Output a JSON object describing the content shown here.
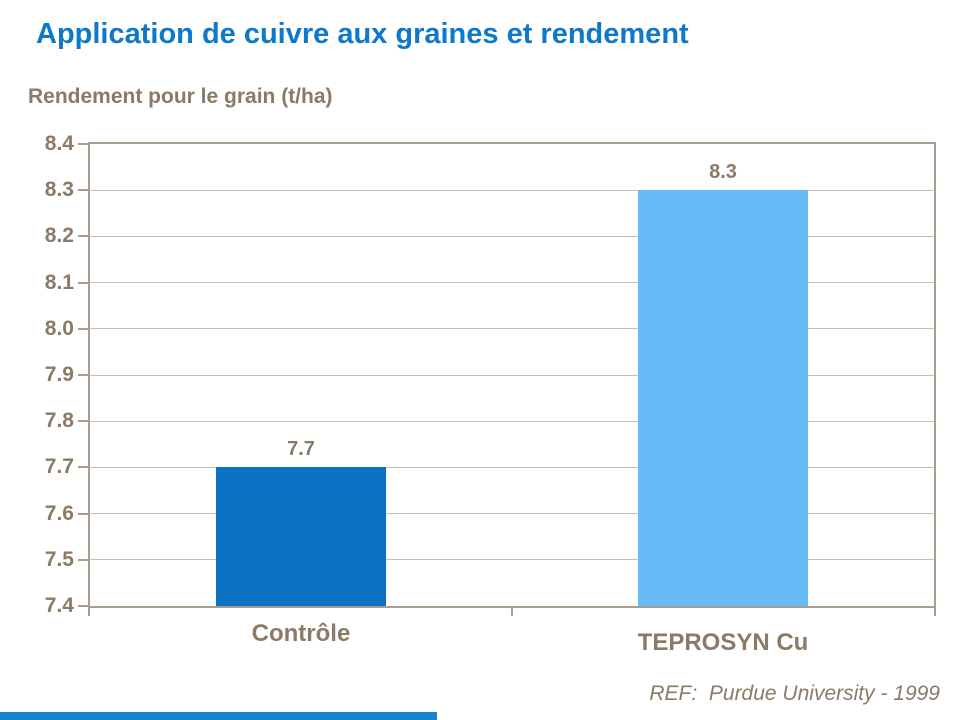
{
  "slide": {
    "title": "Application de cuivre aux graines et rendement",
    "y_axis_title": "Rendement pour le grain (t/ha)",
    "reference": "REF:  Purdue University - 1999"
  },
  "colors": {
    "title_blue": "#0E79C8",
    "text_brown": "#8A7A66",
    "bar_controle": "#0A72C4",
    "bar_teprosyn": "#67BCF8",
    "gridline": "#C9BFB2",
    "axis_border": "#A89D8F",
    "footer_strip": "#1583CE"
  },
  "chart_data": {
    "type": "bar",
    "title": "Application de cuivre aux graines et rendement",
    "xlabel": "",
    "ylabel": "Rendement pour le grain (t/ha)",
    "categories": [
      "Contrôle",
      "TEPROSYN Cu"
    ],
    "values": [
      7.7,
      8.3
    ],
    "data_labels": [
      "7.7",
      "8.3"
    ],
    "bar_colors": [
      "#0A72C4",
      "#67BCF8"
    ],
    "ylim": [
      7.4,
      8.4
    ],
    "ytick_interval": 0.1,
    "ytick_labels": [
      "8.4",
      "8.3",
      "8.2",
      "8.1",
      "8.0",
      "7.9",
      "7.8",
      "7.7",
      "7.6",
      "7.5",
      "7.4"
    ],
    "grid": true,
    "legend_position": "none",
    "annotation": "REF:  Purdue University - 1999"
  }
}
